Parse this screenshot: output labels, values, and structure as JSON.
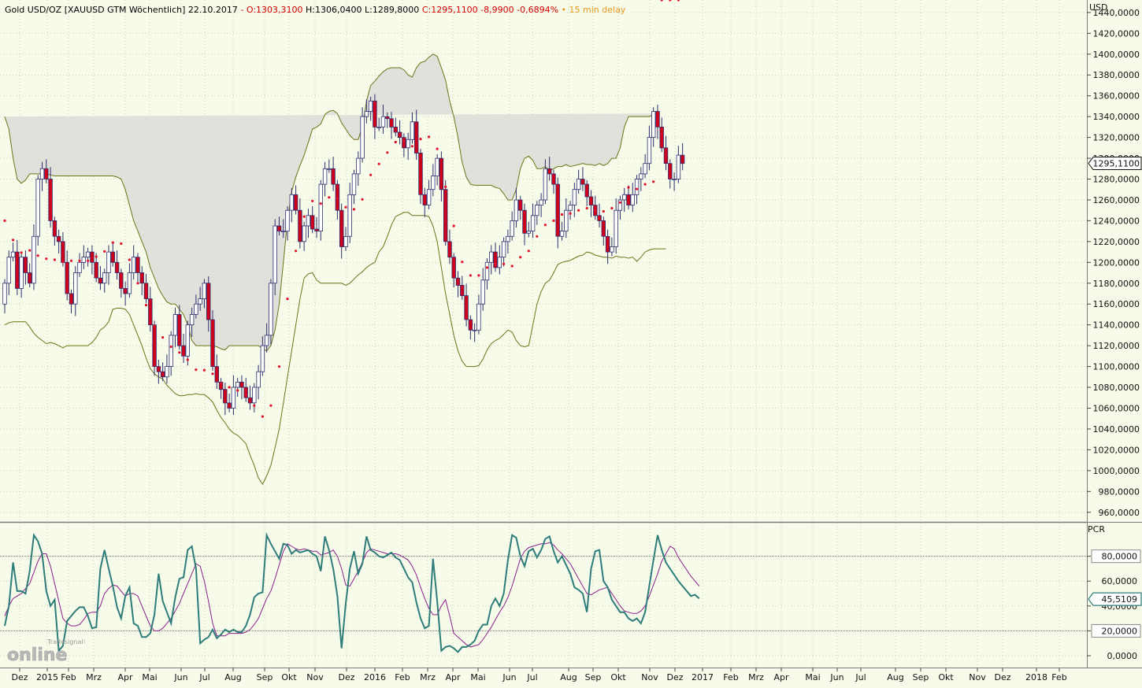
{
  "header": {
    "instrument": "Gold USD/OZ [XAUUSD GTM Wöchentlich] 22.10.2017",
    "sep": "-",
    "open": "O:1303,3100",
    "high": "H:1306,0400",
    "low": "L:1289,8000",
    "close": "C:1295,1100 -8,9900 -0,6894%",
    "delay": "• 15 min delay"
  },
  "logo": {
    "small": "Tradesignal®",
    "big": "online"
  },
  "colors": {
    "background": "#f7fbe9",
    "up_candle": "#ffffff",
    "down_candle": "#d0021b",
    "band_fill": "#e0e1da",
    "band_line": "#6e7318",
    "ma_dots": "#e2112a",
    "stoch_k": "#2e7d7a",
    "stoch_d": "#8b1f8d"
  },
  "chart_data": [
    {
      "type": "candlestick",
      "title": "Gold USD/OZ [XAUUSD GTM Wöchentlich]",
      "currency_label": "USD",
      "overlays": [
        "Bollinger Bands",
        "moving average (dotted)"
      ],
      "x_labels": [
        "Dez",
        "2015",
        "Feb",
        "Mrz",
        "Apr",
        "Mai",
        "Jun",
        "Jul",
        "Aug",
        "Sep",
        "Okt",
        "Nov",
        "Dez",
        "2016",
        "Feb",
        "Mrz",
        "Apr",
        "Mai",
        "Jun",
        "Jul",
        "Aug",
        "Sep",
        "Okt",
        "Nov",
        "Dez",
        "2017",
        "Feb",
        "Mrz",
        "Apr",
        "Mai",
        "Jun",
        "Jul",
        "Aug",
        "Sep",
        "Okt",
        "Nov",
        "Dez",
        "2018",
        "Feb"
      ],
      "y_ticks": [
        "960,0000",
        "980,0000",
        "1000,0000",
        "1020,0000",
        "1040,0000",
        "1060,0000",
        "1080,0000",
        "1100,0000",
        "1120,0000",
        "1140,0000",
        "1160,0000",
        "1180,0000",
        "1200,0000",
        "1220,0000",
        "1240,0000",
        "1260,0000",
        "1280,0000",
        "1300,0000",
        "1320,0000",
        "1340,0000",
        "1360,0000",
        "1380,0000",
        "1400,0000",
        "1420,0000",
        "1440,0000"
      ],
      "ylim": [
        950,
        1452
      ],
      "last_price": 1295.11,
      "last_price_label": "1295,1100",
      "close": [
        1180,
        1205,
        1210,
        1175,
        1205,
        1190,
        1180,
        1225,
        1280,
        1290,
        1280,
        1240,
        1225,
        1220,
        1200,
        1170,
        1160,
        1190,
        1200,
        1205,
        1210,
        1200,
        1185,
        1180,
        1190,
        1210,
        1200,
        1190,
        1175,
        1170,
        1190,
        1205,
        1190,
        1180,
        1165,
        1140,
        1100,
        1095,
        1090,
        1100,
        1130,
        1150,
        1120,
        1110,
        1140,
        1150,
        1160,
        1165,
        1180,
        1145,
        1100,
        1085,
        1078,
        1065,
        1060,
        1080,
        1085,
        1080,
        1070,
        1065,
        1080,
        1095,
        1120,
        1130,
        1180,
        1235,
        1230,
        1230,
        1250,
        1265,
        1250,
        1220,
        1235,
        1245,
        1232,
        1230,
        1275,
        1290,
        1290,
        1275,
        1250,
        1215,
        1225,
        1265,
        1285,
        1300,
        1340,
        1345,
        1355,
        1330,
        1330,
        1340,
        1338,
        1330,
        1325,
        1320,
        1310,
        1318,
        1335,
        1305,
        1265,
        1255,
        1270,
        1283,
        1300,
        1270,
        1220,
        1205,
        1185,
        1178,
        1168,
        1145,
        1135,
        1135,
        1160,
        1183,
        1200,
        1210,
        1195,
        1205,
        1220,
        1225,
        1240,
        1260,
        1250,
        1228,
        1230,
        1245,
        1255,
        1260,
        1290,
        1285,
        1275,
        1225,
        1230,
        1250,
        1255,
        1270,
        1280,
        1275,
        1263,
        1255,
        1245,
        1240,
        1225,
        1210,
        1215,
        1250,
        1260,
        1265,
        1255,
        1265,
        1280,
        1285,
        1295,
        1320,
        1345,
        1330,
        1310,
        1295,
        1280,
        1280,
        1303,
        1295
      ],
      "bollinger_upper": [
        1340,
        1328,
        1300,
        1280,
        1276,
        1279,
        1285,
        1285,
        1285,
        1285,
        1285,
        1284,
        1283,
        1283,
        1283,
        1283,
        1283,
        1283,
        1283,
        1283,
        1283,
        1283,
        1283,
        1283,
        1283,
        1283,
        1283,
        1282,
        1280,
        1270,
        1255,
        1240,
        1230,
        1220,
        1210,
        1195,
        1185,
        1175,
        1168,
        1162,
        1160,
        1160,
        1155,
        1150,
        1140,
        1125,
        1120,
        1120,
        1120,
        1120,
        1120,
        1119,
        1117,
        1116,
        1120,
        1120,
        1120,
        1120,
        1120,
        1120,
        1120,
        1120,
        1117,
        1115,
        1120,
        1135,
        1160,
        1200,
        1240,
        1268,
        1282,
        1293,
        1303,
        1315,
        1328,
        1330,
        1333,
        1342,
        1345,
        1346,
        1343,
        1334,
        1328,
        1322,
        1318,
        1318,
        1330,
        1355,
        1370,
        1374,
        1379,
        1383,
        1386,
        1387,
        1387,
        1387,
        1385,
        1380,
        1378,
        1387,
        1392,
        1393,
        1397,
        1400,
        1398,
        1387,
        1375,
        1355,
        1340,
        1320,
        1296,
        1282,
        1275,
        1274,
        1274,
        1274,
        1274,
        1274,
        1272,
        1271,
        1266,
        1260,
        1260,
        1270,
        1290,
        1300,
        1302,
        1298,
        1290,
        1290,
        1292,
        1288,
        1290,
        1292,
        1292,
        1294,
        1292,
        1293,
        1294,
        1295,
        1294,
        1294,
        1293,
        1295,
        1293,
        1295,
        1300,
        1300,
        1310,
        1330,
        1340,
        1340,
        1340,
        1340,
        1340,
        1340,
        1342,
        1343
      ],
      "bollinger_lower": [
        1140,
        1142,
        1143,
        1143,
        1143,
        1143,
        1138,
        1132,
        1128,
        1125,
        1122,
        1123,
        1122,
        1120,
        1118,
        1120,
        1120,
        1120,
        1120,
        1120,
        1120,
        1123,
        1128,
        1135,
        1138,
        1143,
        1155,
        1156,
        1156,
        1155,
        1150,
        1140,
        1130,
        1120,
        1108,
        1098,
        1093,
        1090,
        1088,
        1082,
        1078,
        1074,
        1072,
        1072,
        1073,
        1073,
        1074,
        1073,
        1073,
        1070,
        1066,
        1058,
        1051,
        1046,
        1040,
        1036,
        1034,
        1030,
        1026,
        1015,
        1005,
        993,
        987,
        995,
        1005,
        1022,
        1040,
        1065,
        1090,
        1115,
        1140,
        1165,
        1185,
        1189,
        1190,
        1183,
        1180,
        1180,
        1180,
        1180,
        1180,
        1180,
        1178,
        1180,
        1184,
        1188,
        1191,
        1195,
        1198,
        1200,
        1210,
        1215,
        1225,
        1236,
        1244,
        1246,
        1248,
        1248,
        1245,
        1245,
        1245,
        1245,
        1244,
        1235,
        1220,
        1195,
        1170,
        1150,
        1130,
        1115,
        1105,
        1100,
        1100,
        1100,
        1101,
        1107,
        1116,
        1122,
        1125,
        1127,
        1131,
        1135,
        1133,
        1125,
        1120,
        1119,
        1120,
        1140,
        1160,
        1172,
        1180,
        1183,
        1190,
        1198,
        1200,
        1201,
        1202,
        1204,
        1206,
        1207,
        1210,
        1209,
        1207,
        1206,
        1205,
        1205,
        1204,
        1206,
        1205,
        1205,
        1204,
        1205,
        1201,
        1205,
        1210,
        1212,
        1213,
        1213,
        1213,
        1213
      ]
    },
    {
      "type": "line",
      "title": "PCR",
      "y_ticks": [
        "0,0000",
        "20,0000",
        "40,0000",
        "60,0000",
        "80,0000"
      ],
      "ylim": [
        -9.5,
        107
      ],
      "reference_lines": [
        20,
        80
      ],
      "last_value": 45.51,
      "last_value_label": "45,5109",
      "series": [
        {
          "name": "",
          "values": [
            24,
            40,
            75,
            52,
            52,
            50,
            68,
            97,
            92,
            82,
            52,
            40,
            45,
            4,
            8,
            28,
            32,
            36,
            39,
            39,
            32,
            22,
            23,
            70,
            85,
            70,
            56,
            39,
            30,
            48,
            55,
            26,
            24,
            15,
            15,
            18,
            33,
            66,
            44,
            35,
            26,
            47,
            62,
            63,
            85,
            88,
            70,
            10,
            13,
            15,
            21,
            14,
            17,
            21,
            19,
            21,
            19,
            19,
            24,
            33,
            47,
            50,
            51,
            97,
            90,
            84,
            78,
            90,
            89,
            82,
            85,
            83,
            84,
            85,
            82,
            80,
            68,
            96,
            85,
            70,
            48,
            6,
            42,
            70,
            84,
            66,
            74,
            96,
            85,
            83,
            80,
            79,
            81,
            83,
            79,
            77,
            70,
            63,
            59,
            43,
            30,
            22,
            24,
            78,
            44,
            4,
            7,
            8,
            6,
            3,
            7,
            7,
            9,
            12,
            20,
            25,
            25,
            40,
            46,
            40,
            50,
            77,
            97,
            95,
            80,
            72,
            84,
            86,
            79,
            85,
            94,
            96,
            84,
            75,
            80,
            73,
            66,
            55,
            53,
            50,
            35,
            70,
            84,
            85,
            60,
            55,
            45,
            40,
            35,
            35,
            30,
            28,
            30,
            26,
            35,
            56,
            77,
            97,
            85,
            75,
            70,
            65,
            60,
            56,
            52,
            48,
            49,
            46
          ]
        },
        {
          "name": "",
          "values": [
            32,
            40,
            46,
            48,
            50,
            54,
            58,
            67,
            76,
            82,
            82,
            72,
            58,
            44,
            30,
            26,
            24,
            24,
            25,
            29,
            34,
            35,
            35,
            40,
            50,
            54,
            57,
            56,
            52,
            48,
            50,
            50,
            48,
            40,
            32,
            24,
            20,
            20,
            22,
            26,
            30,
            36,
            42,
            50,
            58,
            66,
            74,
            72,
            60,
            44,
            26,
            16,
            16,
            16,
            18,
            18,
            18,
            18,
            19,
            21,
            25,
            30,
            38,
            46,
            52,
            62,
            73,
            84,
            90,
            88,
            86,
            85,
            86,
            85,
            84,
            84,
            81,
            82,
            83,
            85,
            80,
            70,
            57,
            56,
            62,
            68,
            75,
            83,
            86,
            85,
            84,
            83,
            82,
            82,
            82,
            81,
            79,
            77,
            72,
            65,
            55,
            46,
            38,
            33,
            33,
            40,
            45,
            32,
            18,
            15,
            12,
            9,
            7,
            8,
            9,
            13,
            18,
            23,
            29,
            35,
            40,
            47,
            56,
            67,
            78,
            84,
            87,
            88,
            89,
            90,
            90,
            91,
            89,
            85,
            82,
            78,
            74,
            68,
            62,
            56,
            50,
            49,
            51,
            53,
            54,
            55,
            50,
            45,
            40,
            36,
            35,
            34,
            34,
            36,
            40,
            48,
            57,
            66,
            76,
            82,
            88,
            86,
            79,
            74,
            69,
            64,
            60,
            56
          ]
        }
      ]
    }
  ]
}
